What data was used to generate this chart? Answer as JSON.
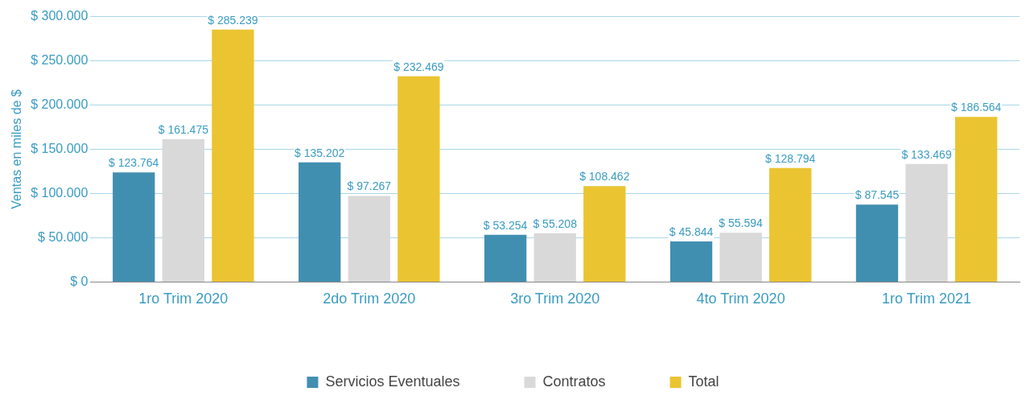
{
  "chart_data": {
    "type": "bar",
    "ylabel": "Ventas en miles de $",
    "categories": [
      "1ro Trim 2020",
      "2do Trim 2020",
      "3ro Trim 2020",
      "4to Trim 2020",
      "1ro Trim 2021"
    ],
    "series": [
      {
        "name": "Servicios Eventuales",
        "color": "#418fb0",
        "values": [
          123764,
          135202,
          53254,
          45844,
          87545
        ],
        "value_labels": [
          "$ 123.764",
          "$ 135.202",
          "$ 53.254",
          "$ 45.844",
          "$ 87.545"
        ]
      },
      {
        "name": "Contratos",
        "color": "#d9d9d9",
        "values": [
          161475,
          97267,
          55208,
          55594,
          133469
        ],
        "value_labels": [
          "$ 161.475",
          "$ 97.267",
          "$ 55.208",
          "$ 55.594",
          "$ 133.469"
        ]
      },
      {
        "name": "Total",
        "color": "#ebc432",
        "values": [
          285239,
          232469,
          108462,
          128794,
          186564
        ],
        "value_labels": [
          "$ 285.239",
          "$ 232.469",
          "$ 108.462",
          "$ 128.794",
          "$ 186.564"
        ]
      }
    ],
    "ylim": [
      0,
      300000
    ],
    "yticks": [
      {
        "value": 0,
        "label": "$ 0"
      },
      {
        "value": 50000,
        "label": "$ 50.000"
      },
      {
        "value": 100000,
        "label": "$ 100.000"
      },
      {
        "value": 150000,
        "label": "$ 150.000"
      },
      {
        "value": 200000,
        "label": "$ 200.000"
      },
      {
        "value": 250000,
        "label": "$ 250.000"
      },
      {
        "value": 300000,
        "label": "$ 300.000"
      }
    ],
    "grid": "y",
    "legend": "bottom"
  }
}
